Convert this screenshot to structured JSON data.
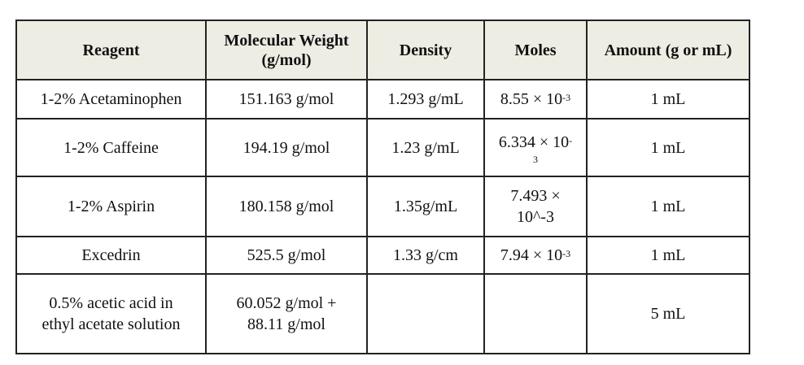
{
  "table": {
    "headers": [
      "Reagent",
      "Molecular Weight (g/mol)",
      "Density",
      "Moles",
      "Amount (g or mL)"
    ],
    "rows": [
      {
        "reagent": "1-2% Acetaminophen",
        "mw": "151.163 g/mol",
        "density": "1.293 g/mL",
        "moles_base": "8.55 × 10",
        "moles_exp": "-3",
        "amount": "1 mL"
      },
      {
        "reagent": "1-2% Caffeine",
        "mw": "194.19 g/mol",
        "density": "1.23 g/mL",
        "moles_base": "6.334 × 10",
        "moles_exp_a": "-",
        "moles_exp_b": "3",
        "amount": "1 mL"
      },
      {
        "reagent": "1-2% Aspirin",
        "mw": "180.158 g/mol",
        "density": "1.35g/mL",
        "moles_line1": "7.493 ×",
        "moles_line2": "10^-3",
        "amount": "1 mL"
      },
      {
        "reagent": "Excedrin",
        "mw": "525.5 g/mol",
        "density": "1.33 g/cm",
        "moles_base": "7.94 × 10",
        "moles_exp": "-3",
        "amount": "1 mL"
      },
      {
        "reagent_line1": "0.5% acetic acid in",
        "reagent_line2": "ethyl acetate solution",
        "mw_line1": "60.052 g/mol +",
        "mw_line2": "88.11 g/mol",
        "density": "",
        "moles": "",
        "amount": "5 mL"
      }
    ]
  }
}
